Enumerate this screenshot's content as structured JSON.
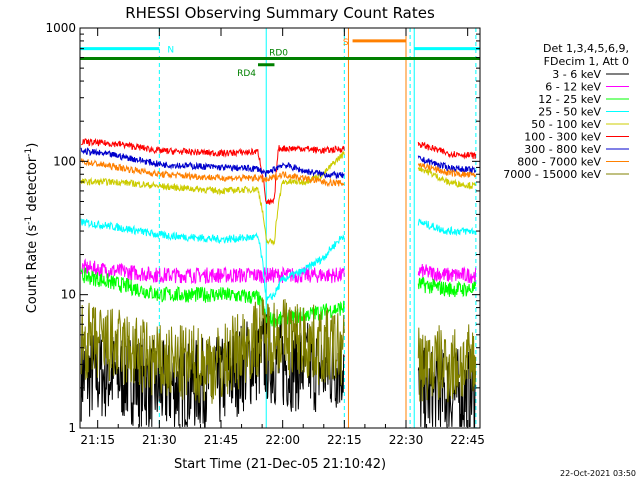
{
  "chart_data": {
    "type": "line",
    "title": "RHESSI Observing Summary Count Rates",
    "xlabel": "Start Time (21-Dec-05 21:10:42)",
    "ylabel_main": "Count Rate (s",
    "ylabel_sup1": "-1",
    "ylabel_mid": " detector",
    "ylabel_sup2": "-1",
    "ylabel_end": ")",
    "yscale": "log",
    "ylim": [
      1,
      1000
    ],
    "x_start": "21:10:42",
    "x_end": "22:48",
    "x_ticks": [
      "21:15",
      "21:30",
      "21:45",
      "22:00",
      "22:15",
      "22:30",
      "22:45"
    ],
    "y_ticks": [
      "1",
      "10",
      "100",
      "1000"
    ],
    "legend_header": [
      "Det 1,3,4,5,6,9,",
      "FDecim 1, Att 0"
    ],
    "legend_position": "right",
    "footer": "22-Oct-2021 03:50",
    "flags": [
      {
        "label": "N",
        "color": "#00ffff",
        "segments": [
          [
            "21:10:42",
            "21:30"
          ],
          [
            "22:32",
            "22:48"
          ]
        ],
        "y": 700
      },
      {
        "label": "S",
        "color": "#ff8000",
        "segments": [
          [
            "22:17",
            "22:30"
          ]
        ],
        "y": 800
      },
      {
        "label": "RD0",
        "color": "#008000",
        "segments": [
          [
            "21:10:42",
            "22:48"
          ]
        ],
        "y": 590
      },
      {
        "label": "RD4",
        "color": "#008000",
        "segments": [
          [
            "21:54",
            "21:58"
          ]
        ],
        "y": 530
      }
    ],
    "vlines": [
      {
        "time": "21:10:42",
        "color": "#00ffff",
        "dashed": false
      },
      {
        "time": "21:30",
        "color": "#00ffff",
        "dashed": true
      },
      {
        "time": "21:56",
        "color": "#00ffff",
        "dashed": false
      },
      {
        "time": "22:15",
        "color": "#00ffff",
        "dashed": true
      },
      {
        "time": "22:16",
        "color": "#ff8000",
        "dashed": false
      },
      {
        "time": "22:30",
        "color": "#ff8000",
        "dashed": false
      },
      {
        "time": "22:31",
        "color": "#00ffff",
        "dashed": true
      },
      {
        "time": "22:32",
        "color": "#00ffff",
        "dashed": false
      },
      {
        "time": "22:47",
        "color": "#00ffff",
        "dashed": true
      }
    ],
    "series": [
      {
        "name": "3 - 6 keV",
        "color": "#000000",
        "points": [
          [
            "21:11",
            2.5
          ],
          [
            "21:20",
            2.5
          ],
          [
            "21:30",
            2.0
          ],
          [
            "21:45",
            2.2
          ],
          [
            "21:55",
            3.5
          ],
          [
            "22:00",
            3.0
          ],
          [
            "22:10",
            2.8
          ],
          [
            "22:15",
            3.0
          ]
        ],
        "points2": [
          [
            "22:33",
            1.8
          ],
          [
            "22:40",
            1.8
          ],
          [
            "22:47",
            1.8
          ]
        ],
        "noise": 0.35
      },
      {
        "name": "6 - 12 keV",
        "color": "#ff00ff",
        "points": [
          [
            "21:11",
            16
          ],
          [
            "21:20",
            15
          ],
          [
            "21:30",
            14
          ],
          [
            "21:45",
            14
          ],
          [
            "21:55",
            14
          ],
          [
            "22:05",
            14
          ],
          [
            "22:15",
            14
          ]
        ],
        "points2": [
          [
            "22:33",
            15
          ],
          [
            "22:40",
            14
          ],
          [
            "22:47",
            14
          ]
        ],
        "noise": 0.06
      },
      {
        "name": "12 - 25 keV",
        "color": "#00ff00",
        "points": [
          [
            "21:11",
            14
          ],
          [
            "21:20",
            12
          ],
          [
            "21:30",
            10
          ],
          [
            "21:45",
            10
          ],
          [
            "21:54",
            9.5
          ],
          [
            "21:56",
            6.5
          ],
          [
            "22:00",
            6.5
          ],
          [
            "22:05",
            7.0
          ],
          [
            "22:10",
            7.5
          ],
          [
            "22:15",
            8.0
          ]
        ],
        "points2": [
          [
            "22:33",
            12
          ],
          [
            "22:40",
            11
          ],
          [
            "22:47",
            11
          ]
        ],
        "noise": 0.06
      },
      {
        "name": "25 - 50 keV",
        "color": "#00ffff",
        "points": [
          [
            "21:11",
            35
          ],
          [
            "21:20",
            32
          ],
          [
            "21:30",
            28
          ],
          [
            "21:45",
            26
          ],
          [
            "21:54",
            27
          ],
          [
            "21:56",
            9
          ],
          [
            "21:58",
            10
          ],
          [
            "22:00",
            13
          ],
          [
            "22:05",
            15
          ],
          [
            "22:10",
            19
          ],
          [
            "22:15",
            28
          ]
        ],
        "points2": [
          [
            "22:33",
            35
          ],
          [
            "22:40",
            30
          ],
          [
            "22:47",
            30
          ]
        ],
        "noise": 0.03
      },
      {
        "name": "50 - 100 keV",
        "color": "#cccc00",
        "points": [
          [
            "21:11",
            70
          ],
          [
            "21:20",
            70
          ],
          [
            "21:30",
            65
          ],
          [
            "21:45",
            60
          ],
          [
            "21:54",
            62
          ],
          [
            "21:56",
            25
          ],
          [
            "21:58",
            25
          ],
          [
            "22:00",
            70
          ],
          [
            "22:05",
            70
          ],
          [
            "22:10",
            80
          ],
          [
            "22:15",
            115
          ]
        ],
        "points2": [
          [
            "22:33",
            90
          ],
          [
            "22:40",
            70
          ],
          [
            "22:47",
            65
          ]
        ],
        "noise": 0.025
      },
      {
        "name": "100 - 300 keV",
        "color": "#ff0000",
        "points": [
          [
            "21:11",
            140
          ],
          [
            "21:20",
            135
          ],
          [
            "21:30",
            120
          ],
          [
            "21:45",
            115
          ],
          [
            "21:54",
            118
          ],
          [
            "21:56",
            48
          ],
          [
            "21:58",
            50
          ],
          [
            "21:59",
            125
          ],
          [
            "22:05",
            125
          ],
          [
            "22:10",
            120
          ],
          [
            "22:15",
            125
          ]
        ],
        "points2": [
          [
            "22:33",
            135
          ],
          [
            "22:40",
            115
          ],
          [
            "22:47",
            110
          ]
        ],
        "noise": 0.025
      },
      {
        "name": "300 - 800 keV",
        "color": "#0000cc",
        "points": [
          [
            "21:11",
            120
          ],
          [
            "21:20",
            110
          ],
          [
            "21:30",
            95
          ],
          [
            "21:45",
            90
          ],
          [
            "21:54",
            88
          ],
          [
            "21:56",
            80
          ],
          [
            "22:00",
            95
          ],
          [
            "22:05",
            85
          ],
          [
            "22:10",
            80
          ],
          [
            "22:15",
            78
          ]
        ],
        "points2": [
          [
            "22:33",
            105
          ],
          [
            "22:40",
            90
          ],
          [
            "22:47",
            85
          ]
        ],
        "noise": 0.025
      },
      {
        "name": "800 - 7000 keV",
        "color": "#ff8000",
        "points": [
          [
            "21:11",
            100
          ],
          [
            "21:20",
            90
          ],
          [
            "21:30",
            80
          ],
          [
            "21:45",
            75
          ],
          [
            "21:54",
            75
          ],
          [
            "21:56",
            72
          ],
          [
            "22:00",
            80
          ],
          [
            "22:05",
            75
          ],
          [
            "22:10",
            70
          ],
          [
            "22:15",
            68
          ]
        ],
        "points2": [
          [
            "22:33",
            95
          ],
          [
            "22:40",
            82
          ],
          [
            "22:47",
            78
          ]
        ],
        "noise": 0.025
      },
      {
        "name": "7000 - 15000 keV",
        "color": "#808000",
        "points": [
          [
            "21:11",
            4.5
          ],
          [
            "21:20",
            4.0
          ],
          [
            "21:30",
            3.0
          ],
          [
            "21:45",
            3.0
          ],
          [
            "21:55",
            5.0
          ],
          [
            "22:00",
            5.0
          ],
          [
            "22:10",
            4.0
          ],
          [
            "22:15",
            4.0
          ]
        ],
        "points2": [
          [
            "22:33",
            3.0
          ],
          [
            "22:40",
            3.0
          ],
          [
            "22:47",
            3.0
          ]
        ],
        "noise": 0.3
      }
    ]
  }
}
